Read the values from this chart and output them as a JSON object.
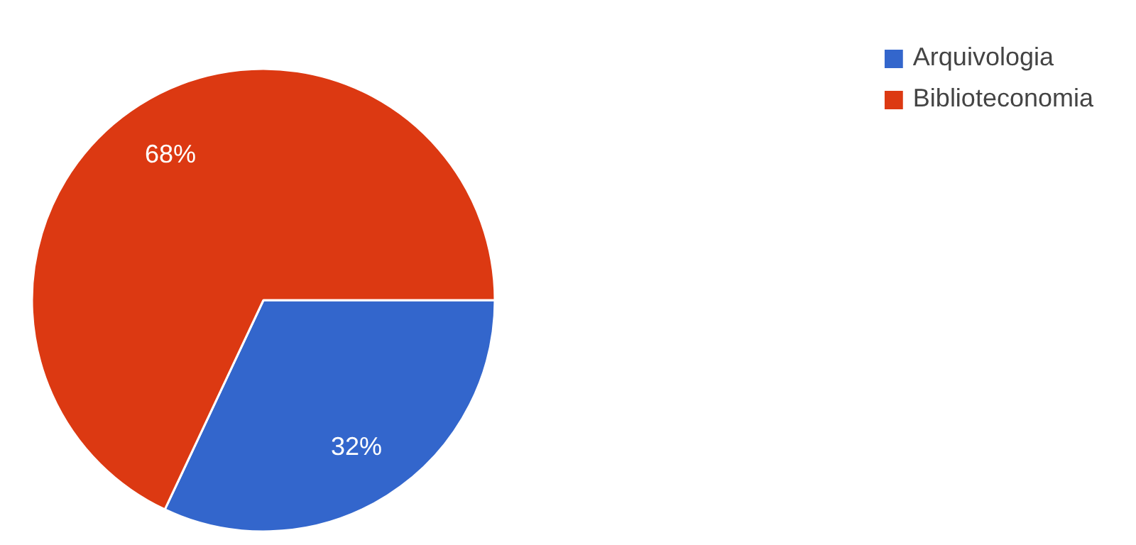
{
  "chart_data": {
    "type": "pie",
    "categories": [
      "Arquivologia",
      "Biblioteconomia"
    ],
    "values": [
      32,
      68
    ],
    "colors": [
      "#3366cc",
      "#dc3912"
    ],
    "value_labels": [
      "32%",
      "68%"
    ],
    "legend": "top right"
  }
}
